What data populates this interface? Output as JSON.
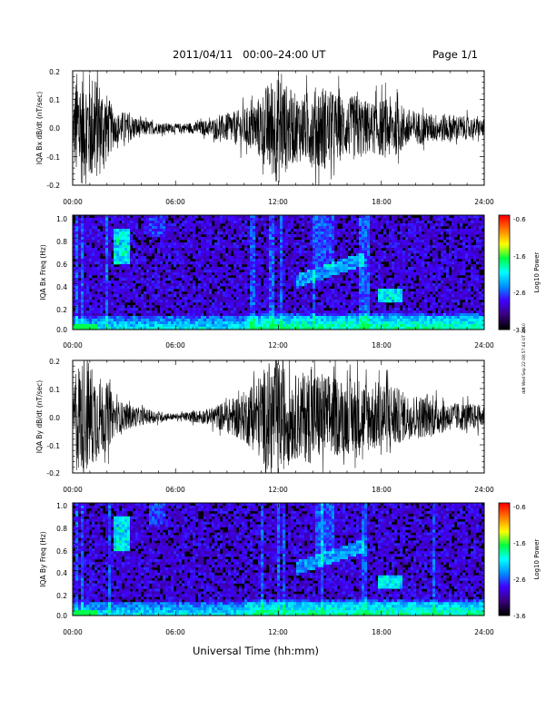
{
  "header": {
    "title": "2011/04/11   00:00–24:00 UT",
    "page": "Page 1/1"
  },
  "footer": {
    "xlabel": "Universal Time (hh:mm)"
  },
  "side_stamp": "ddt Wed Sep 22 08:57:44 UT 2010",
  "chart_data": [
    {
      "type": "line",
      "name": "panel-bx-dbdt",
      "ylabel": "IQA Bx dB/dt (nT/sec)",
      "xticks": [
        "00:00",
        "06:00",
        "12:00",
        "18:00",
        "24:00"
      ],
      "yticks": [
        "0.2",
        "0.1",
        "0.0",
        "-0.1",
        "-0.2"
      ],
      "xlim": [
        0,
        24
      ],
      "ylim": [
        -0.2,
        0.2
      ],
      "envelope": {
        "x": [
          0,
          0.2,
          0.5,
          1.0,
          1.5,
          2.0,
          2.5,
          3.0,
          4,
          5,
          6,
          7,
          8,
          9,
          10,
          10.5,
          11,
          11.5,
          12,
          12.5,
          13,
          13.5,
          14,
          14.5,
          15,
          15.5,
          16,
          16.5,
          17,
          17.5,
          18,
          18.5,
          19,
          19.5,
          20,
          21,
          22,
          23,
          24
        ],
        "amplitude": [
          0.05,
          0.2,
          0.2,
          0.2,
          0.18,
          0.12,
          0.05,
          0.06,
          0.03,
          0.02,
          0.015,
          0.02,
          0.03,
          0.05,
          0.07,
          0.08,
          0.12,
          0.17,
          0.2,
          0.15,
          0.12,
          0.12,
          0.14,
          0.16,
          0.13,
          0.12,
          0.1,
          0.12,
          0.1,
          0.09,
          0.1,
          0.11,
          0.09,
          0.07,
          0.06,
          0.05,
          0.05,
          0.04,
          0.03
        ]
      }
    },
    {
      "type": "heatmap",
      "name": "panel-bx-freq",
      "ylabel": "IQA Bx Freq (Hz)",
      "xticks": [
        "00:00",
        "06:00",
        "12:00",
        "18:00",
        "24:00"
      ],
      "yticks": [
        "1.0",
        "0.8",
        "0.6",
        "0.4",
        "0.2",
        "0.0"
      ],
      "xlim": [
        0,
        24
      ],
      "ylim": [
        0,
        1.0
      ],
      "colorbar": {
        "label": "Log10 Power",
        "ticks": [
          "-0.6",
          "-1.6",
          "-2.6",
          "-3.6"
        ],
        "range": [
          -3.6,
          -0.6
        ],
        "colors": [
          "#000000",
          "#3a0080",
          "#4000ff",
          "#0090ff",
          "#00ffff",
          "#00ff40",
          "#ffff00",
          "#ff8000",
          "#ff0000"
        ]
      }
    },
    {
      "type": "line",
      "name": "panel-by-dbdt",
      "ylabel": "IQA By dB/dt (nT/sec)",
      "xticks": [
        "00:00",
        "06:00",
        "12:00",
        "18:00",
        "24:00"
      ],
      "yticks": [
        "0.2",
        "0.1",
        "0.0",
        "-0.1",
        "-0.2"
      ],
      "xlim": [
        0,
        24
      ],
      "ylim": [
        -0.2,
        0.2
      ],
      "envelope": {
        "x": [
          0,
          0.2,
          0.5,
          1.0,
          1.5,
          2.0,
          2.5,
          3.0,
          4,
          5,
          6,
          7,
          8,
          9,
          10,
          10.5,
          11,
          11.5,
          12,
          12.5,
          13,
          13.5,
          14,
          14.5,
          15,
          15.5,
          16,
          16.5,
          17,
          17.5,
          18,
          18.5,
          19,
          19.5,
          20,
          21,
          22,
          23,
          24
        ],
        "amplitude": [
          0.05,
          0.2,
          0.2,
          0.2,
          0.15,
          0.12,
          0.06,
          0.05,
          0.03,
          0.02,
          0.01,
          0.02,
          0.03,
          0.06,
          0.09,
          0.12,
          0.16,
          0.2,
          0.2,
          0.18,
          0.15,
          0.16,
          0.17,
          0.16,
          0.15,
          0.14,
          0.13,
          0.15,
          0.13,
          0.12,
          0.14,
          0.13,
          0.1,
          0.08,
          0.08,
          0.07,
          0.05,
          0.05,
          0.04
        ]
      }
    },
    {
      "type": "heatmap",
      "name": "panel-by-freq",
      "ylabel": "IQA By Freq (Hz)",
      "xticks": [
        "00:00",
        "06:00",
        "12:00",
        "18:00",
        "24:00"
      ],
      "yticks": [
        "1.0",
        "0.8",
        "0.6",
        "0.4",
        "0.2",
        "0.0"
      ],
      "xlim": [
        0,
        24
      ],
      "ylim": [
        0,
        1.0
      ],
      "colorbar": {
        "label": "Log10 Power",
        "ticks": [
          "-0.6",
          "-1.6",
          "-2.6",
          "-3.6"
        ],
        "range": [
          -3.6,
          -0.6
        ],
        "colors": [
          "#000000",
          "#3a0080",
          "#4000ff",
          "#0090ff",
          "#00ffff",
          "#00ff40",
          "#ffff00",
          "#ff8000",
          "#ff0000"
        ]
      }
    }
  ]
}
